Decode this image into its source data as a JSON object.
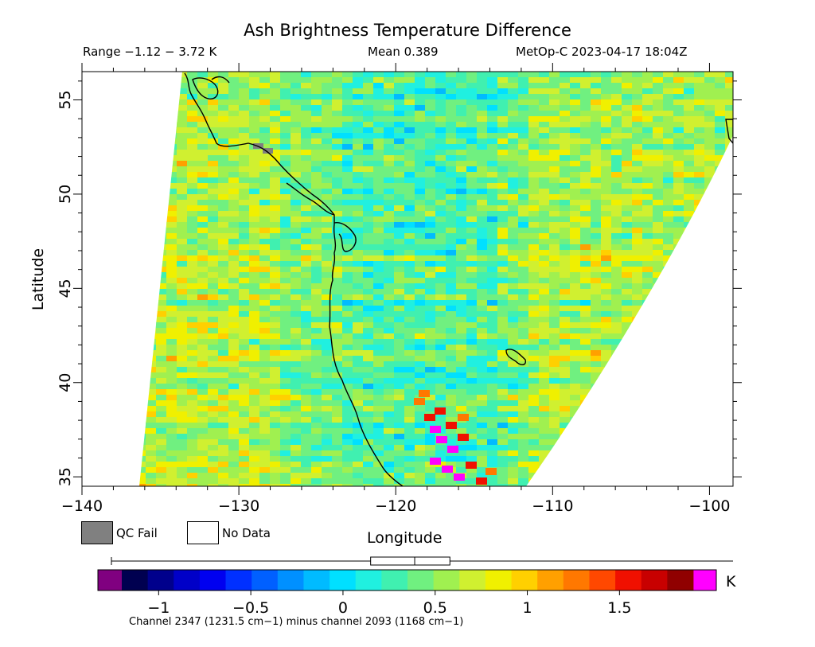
{
  "title": "Ash Brightness Temperature Difference",
  "header": {
    "range": "Range −1.12 − 3.72 K",
    "mean": "Mean 0.389",
    "satellite": "MetOp-C 2023-04-17 18:04Z"
  },
  "chart_data": {
    "type": "heatmap",
    "xlabel": "Longitude",
    "ylabel": "Latitude",
    "xlim": [
      -140,
      -98.5
    ],
    "ylim": [
      34.5,
      56.5
    ],
    "x_ticks": [
      -140,
      -130,
      -120,
      -110,
      -100
    ],
    "x_tick_labels": [
      "−140",
      "−130",
      "−120",
      "−110",
      "−100"
    ],
    "y_ticks": [
      35,
      40,
      45,
      50,
      55
    ],
    "y_tick_labels": [
      "35",
      "40",
      "45",
      "50",
      "55"
    ],
    "grid": false,
    "colorbar": {
      "min": -1.2,
      "max": 1.9,
      "ticks": [
        -1,
        -0.5,
        0,
        0.5,
        1,
        1.5
      ],
      "tick_labels": [
        "−1",
        "−0.5",
        "0",
        "0.5",
        "1",
        "1.5"
      ],
      "unit": "K",
      "under_color": "#800080",
      "over_color": "#ff00ff",
      "colors": [
        "#000050",
        "#00008c",
        "#0000c8",
        "#0000f0",
        "#0030ff",
        "#0060ff",
        "#0090ff",
        "#00bbff",
        "#00e0ff",
        "#20f0e0",
        "#40f0b0",
        "#70f080",
        "#a0f050",
        "#d0f030",
        "#f0f000",
        "#ffd000",
        "#ffa000",
        "#ff7800",
        "#ff4800",
        "#f01000",
        "#c80000",
        "#900000"
      ],
      "mean_marker": 0.389,
      "box_range": [
        0.15,
        0.58
      ]
    },
    "caption": "Channel 2347 (1231.5 cm−1) minus channel 2093 (1168 cm−1)"
  },
  "legend": {
    "qc_fail": "QC Fail",
    "no_data": "No Data",
    "qc_fail_color": "#808080",
    "no_data_color": "#ffffff"
  }
}
